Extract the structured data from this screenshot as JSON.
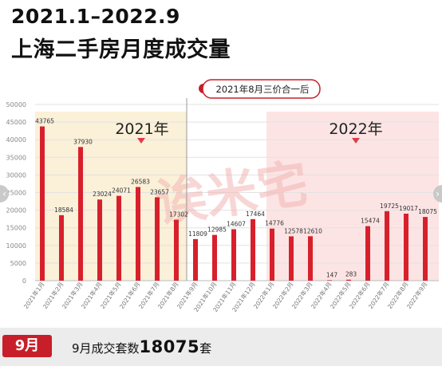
{
  "title_line1": "2021.1–2022.9",
  "title_line2": "上海二手房月度成交量",
  "callout": "2021年8月三价合一后",
  "year_labels": [
    "2021年",
    "2022年"
  ],
  "watermark": "诶米宅",
  "footer": {
    "month": "9月",
    "text_before": "9月成交套数",
    "value": "18075",
    "text_after": "套"
  },
  "colors": {
    "bar": "#d8202c",
    "highlight2021": "#fbf0d8",
    "highlight2022": "#fde4e4",
    "marker": "#e03a4a",
    "badge": "#c81e2a"
  },
  "chart_data": {
    "type": "bar",
    "ylim": [
      0,
      50000
    ],
    "yticks": [
      0,
      5000,
      10000,
      15000,
      20000,
      25000,
      30000,
      35000,
      40000,
      45000,
      50000
    ],
    "grid": true,
    "categories": [
      "2021年1月",
      "2021年2月",
      "2021年3月",
      "2021年4月",
      "2021年5月",
      "2021年6月",
      "2021年7月",
      "2021年8月",
      "2021年9月",
      "2021年10月",
      "2021年11月",
      "2021年12月",
      "2022年1月",
      "2022年2月",
      "2022年3月",
      "2022年4月",
      "2022年5月",
      "2022年6月",
      "2022年7月",
      "2022年8月",
      "2022年9月"
    ],
    "values": [
      43765,
      18584,
      37930,
      23024,
      24071,
      26583,
      23657,
      17302,
      11809,
      12985,
      14607,
      17464,
      14776,
      12578,
      12610,
      147,
      283,
      15474,
      19725,
      19017,
      18075
    ],
    "value_labels": [
      "43765",
      "18584",
      "37930",
      "23024",
      "24071",
      "26583",
      "23657",
      "17302",
      "11809",
      "12985",
      "14607",
      "17464",
      "14776",
      "12578",
      "12610",
      "147",
      "283",
      "15474",
      "19725",
      "19017",
      "18075"
    ]
  }
}
